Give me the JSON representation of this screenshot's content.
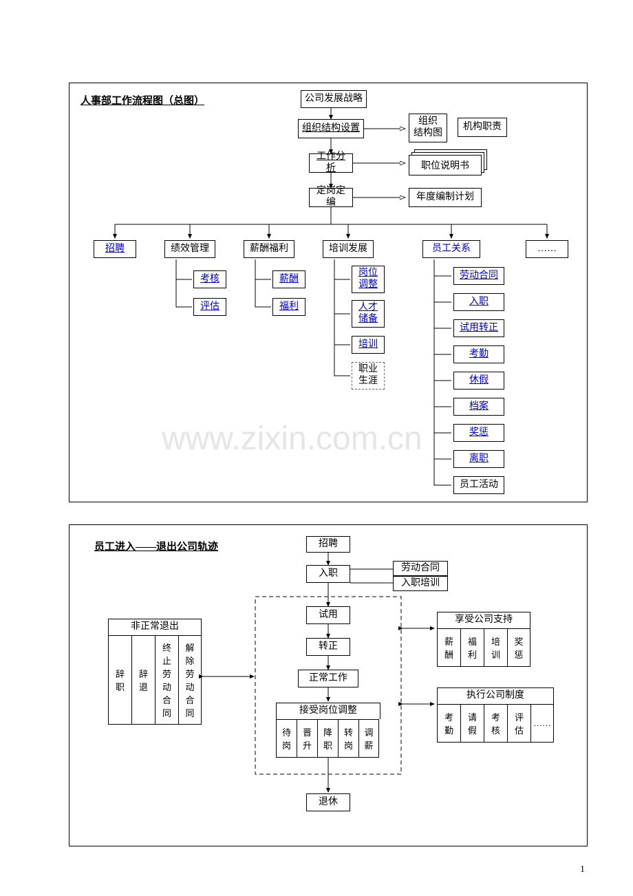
{
  "page_number": "1",
  "watermark": "www.zixin.com.cn",
  "panel1": {
    "title": "人事部工作流程图（总图）",
    "nodes": {
      "strategy": "公司发展战略",
      "org_setup": "组织结构设置",
      "org_chart": "组织\n结构图",
      "org_duty": "机构职责",
      "job_analysis": "工作分析",
      "job_desc": "职位说明书",
      "headcount": "定岗定编",
      "annual_plan": "年度编制计划",
      "recruit": "招聘",
      "perf_mgmt": "绩效管理",
      "comp_benefit": "薪酬福利",
      "training_dev": "培训发展",
      "emp_rel": "员工关系",
      "more": "……",
      "perf_sub": {
        "assess": "考核",
        "eval": "评估"
      },
      "comp_sub": {
        "salary": "薪酬",
        "welfare": "福利"
      },
      "train_sub": {
        "post_adj": "岗位\n调整",
        "talent": "人才\n储备",
        "training": "培训",
        "career": "职业\n生涯"
      },
      "rel_sub": {
        "contract": "劳动合同",
        "onboard": "入职",
        "probation": "试用转正",
        "attendance": "考勤",
        "leave": "休假",
        "archive": "档案",
        "reward": "奖惩",
        "offboard": "离职",
        "activity": "员工活动"
      }
    }
  },
  "panel2": {
    "title": "员工进入——退出公司轨迹",
    "nodes": {
      "recruit": "招聘",
      "onboard": "入职",
      "contract": "劳动合同",
      "induction": "入职培训",
      "probation": "试用",
      "regular": "转正",
      "work": "正常工作",
      "adjust_header": "接受岗位调整",
      "adjust_cells": [
        "待\n岗",
        "晋\n升",
        "降\n职",
        "转\n岗",
        "调\n薪"
      ],
      "retire": "退休",
      "abnormal_header": "非正常退出",
      "abnormal_cells": [
        "辞\n职",
        "辞\n退",
        "终\n止\n劳\n动\n合\n同",
        "解\n除\n劳\n动\n合\n同"
      ],
      "support_header": "享受公司支持",
      "support_cells": [
        "薪\n酬",
        "福\n利",
        "培\n训",
        "奖\n惩"
      ],
      "system_header": "执行公司制度",
      "system_cells": [
        "考\n勤",
        "请\n假",
        "考\n核",
        "评\n估",
        "……"
      ]
    }
  },
  "colors": {
    "link": "#0000cc",
    "border": "#000000",
    "watermark": "#e5e5e5"
  }
}
